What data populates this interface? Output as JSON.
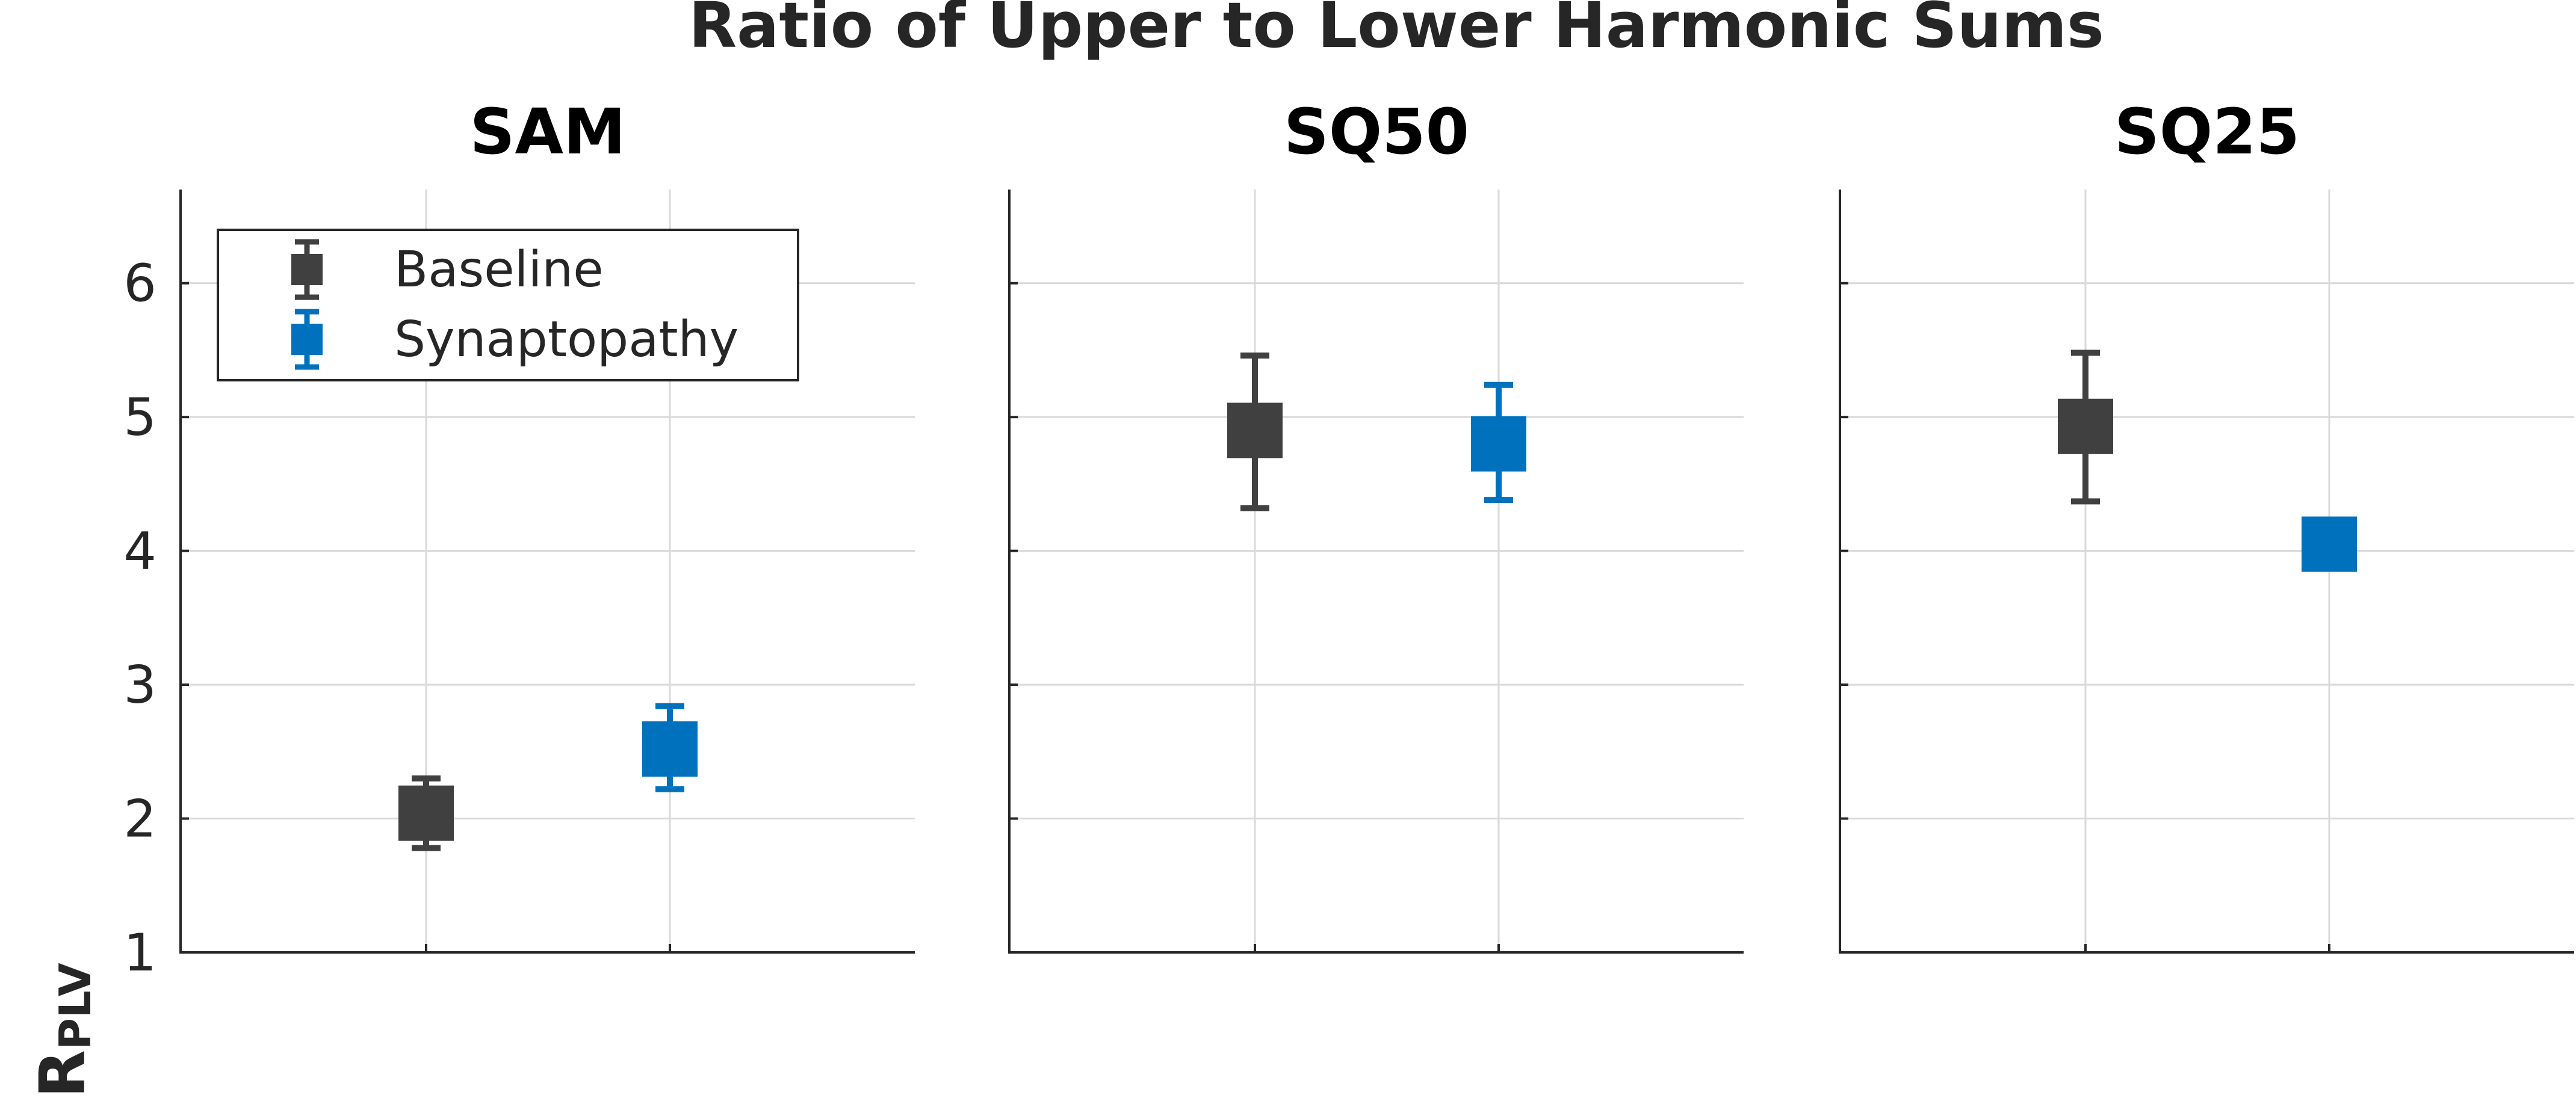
{
  "chart_data": {
    "type": "scatter",
    "title": "Ratio of Upper to Lower Harmonic Sums",
    "ylabel": {
      "main": "R",
      "subscript": "PLV"
    },
    "ylim": [
      1,
      6.7
    ],
    "yticks": [
      1,
      2,
      3,
      4,
      5,
      6
    ],
    "grid": true,
    "legend": {
      "placement": "top-left",
      "entries": [
        "Baseline",
        "Synaptopathy"
      ]
    },
    "colors": {
      "Baseline": "#404040",
      "Synaptopathy": "#0072bd"
    },
    "panels": [
      {
        "title": "SAM",
        "points": [
          {
            "series": "Baseline",
            "x": 1,
            "y": 2.04,
            "err_low": 1.78,
            "err_high": 2.3
          },
          {
            "series": "Synaptopathy",
            "x": 2,
            "y": 2.52,
            "err_low": 2.22,
            "err_high": 2.84
          }
        ]
      },
      {
        "title": "SQ50",
        "points": [
          {
            "series": "Baseline",
            "x": 1,
            "y": 4.9,
            "err_low": 4.32,
            "err_high": 5.46
          },
          {
            "series": "Synaptopathy",
            "x": 2,
            "y": 4.8,
            "err_low": 4.38,
            "err_high": 5.24
          }
        ]
      },
      {
        "title": "SQ25",
        "points": [
          {
            "series": "Baseline",
            "x": 1,
            "y": 4.93,
            "err_low": 4.37,
            "err_high": 5.48
          },
          {
            "series": "Synaptopathy",
            "x": 2,
            "y": 4.05,
            "err_low": 4.05,
            "err_high": 4.05
          }
        ]
      }
    ]
  }
}
